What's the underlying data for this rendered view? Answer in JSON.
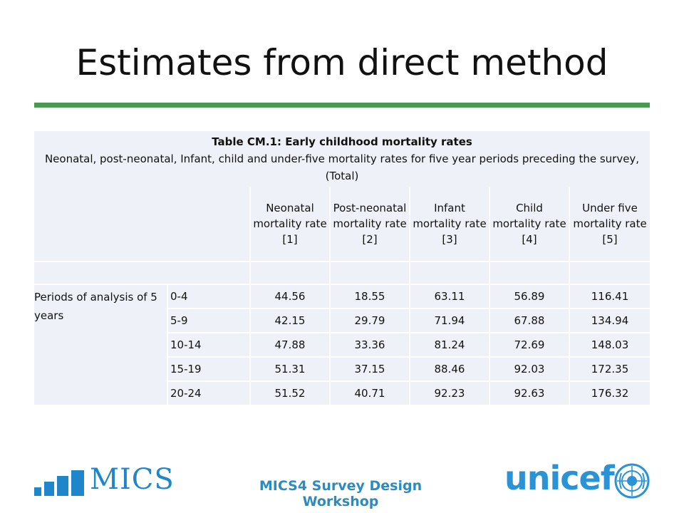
{
  "slide": {
    "title": "Estimates from direct method",
    "footer": "MICS4 Survey Design Workshop",
    "mics_logo_text": "MICS",
    "unicef_logo_text": "unicef",
    "accent_color": "#4a9a52",
    "footer_color": "#2e8bbf"
  },
  "table": {
    "caption_title": "Table CM.1: Early childhood mortality rates",
    "caption_subtitle": "Neonatal, post-neonatal, Infant, child and under-five mortality rates for five year periods preceding the survey, (Total)",
    "columns": [
      "Neonatal mortality rate [1]",
      "Post-neonatal mortality rate [2]",
      "Infant mortality rate [3]",
      "Child mortality rate [4]",
      "Under five mortality rate [5]"
    ],
    "group_label": "Periods of analysis of 5 years",
    "rows": [
      {
        "period": "0-4",
        "values": [
          "44.56",
          "18.55",
          "63.11",
          "56.89",
          "116.41"
        ]
      },
      {
        "period": "5-9",
        "values": [
          "42.15",
          "29.79",
          "71.94",
          "67.88",
          "134.94"
        ]
      },
      {
        "period": "10-14",
        "values": [
          "47.88",
          "33.36",
          "81.24",
          "72.69",
          "148.03"
        ]
      },
      {
        "period": "15-19",
        "values": [
          "51.31",
          "37.15",
          "88.46",
          "92.03",
          "172.35"
        ]
      },
      {
        "period": "20-24",
        "values": [
          "51.52",
          "40.71",
          "92.23",
          "92.63",
          "176.32"
        ]
      }
    ]
  }
}
